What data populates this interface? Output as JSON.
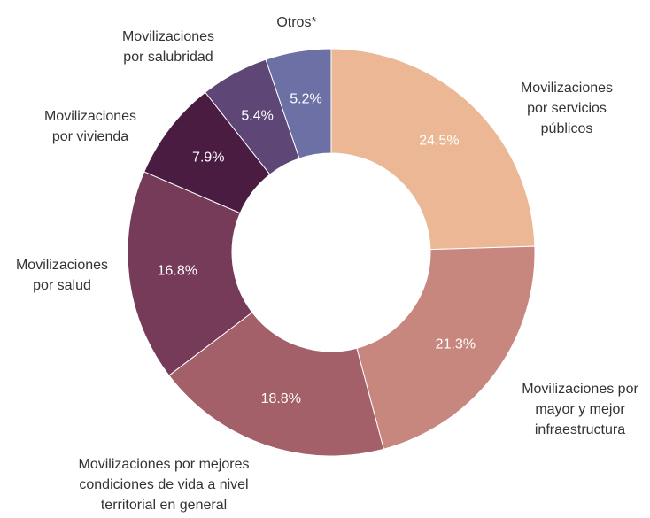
{
  "chart_data": {
    "type": "donut",
    "categories": [
      "Movilizaciones por servicios públicos",
      "Movilizaciones por mayor y mejor infraestructura",
      "Movilizaciones por mejores condiciones de vida a nivel territorial en general",
      "Movilizaciones por salud",
      "Movilizaciones por vivienda",
      "Movilizaciones por salubridad",
      "Otros*"
    ],
    "values": [
      24.5,
      21.3,
      18.8,
      16.8,
      7.9,
      5.4,
      5.2
    ],
    "value_labels": [
      "24.5%",
      "21.3%",
      "18.8%",
      "16.8%",
      "7.9%",
      "5.4%",
      "5.2%"
    ],
    "colors": [
      "#ebb795",
      "#c8877e",
      "#a36068",
      "#753b58",
      "#4a1c42",
      "#5e4776",
      "#6d70a5"
    ]
  }
}
